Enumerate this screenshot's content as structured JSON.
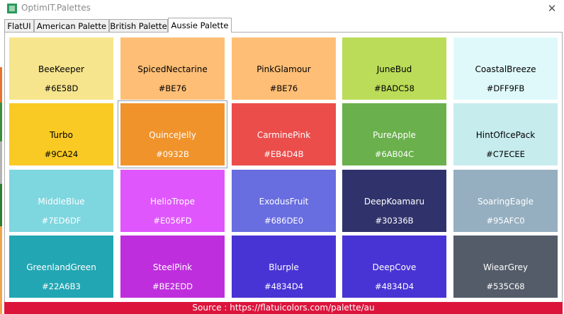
{
  "window": {
    "title": "OptimIT.Palettes",
    "close_symbol": "✕",
    "icon": "app-icon"
  },
  "tabs": [
    {
      "label": "FlatUI",
      "selected": false
    },
    {
      "label": "American Palette",
      "selected": false
    },
    {
      "label": "British Palette",
      "selected": false
    },
    {
      "label": "Aussie Palette",
      "selected": true
    }
  ],
  "swatches": [
    {
      "name": "BeeKeeper",
      "code": "#6E58D",
      "color": "#f6e58d",
      "text_color": "#000000"
    },
    {
      "name": "SpicedNectarine",
      "code": "#BE76",
      "color": "#ffbe76",
      "text_color": "#000000"
    },
    {
      "name": "PinkGlamour",
      "code": "#BE76",
      "color": "#ffbe76",
      "text_color": "#000000"
    },
    {
      "name": "JuneBud",
      "code": "#BADC58",
      "color": "#badc58",
      "text_color": "#000000"
    },
    {
      "name": "CoastalBreeze",
      "code": "#DFF9FB",
      "color": "#dff9fb",
      "text_color": "#000000"
    },
    {
      "name": "Turbo",
      "code": "#9CA24",
      "color": "#f9ca24",
      "text_color": "#000000"
    },
    {
      "name": "QuinceJelly",
      "code": "#0932B",
      "color": "#f0932b",
      "text_color": "#ffffff",
      "focused": true
    },
    {
      "name": "CarminePink",
      "code": "#EB4D4B",
      "color": "#eb4d4b",
      "text_color": "#ffffff"
    },
    {
      "name": "PureApple",
      "code": "#6AB04C",
      "color": "#6ab04c",
      "text_color": "#ffffff"
    },
    {
      "name": "HintOfIcePack",
      "code": "#C7ECEE",
      "color": "#c7ecee",
      "text_color": "#000000"
    },
    {
      "name": "MiddleBlue",
      "code": "#7ED6DF",
      "color": "#7ed6df",
      "text_color": "#ffffff"
    },
    {
      "name": "HelioTrope",
      "code": "#E056FD",
      "color": "#e056fd",
      "text_color": "#ffffff"
    },
    {
      "name": "ExodusFruit",
      "code": "#686DE0",
      "color": "#686de0",
      "text_color": "#ffffff"
    },
    {
      "name": "DeepKoamaru",
      "code": "#30336B",
      "color": "#30336b",
      "text_color": "#ffffff"
    },
    {
      "name": "SoaringEagle",
      "code": "#95AFC0",
      "color": "#95afc0",
      "text_color": "#ffffff"
    },
    {
      "name": "GreenlandGreen",
      "code": "#22A6B3",
      "color": "#22a6b3",
      "text_color": "#ffffff"
    },
    {
      "name": "SteelPink",
      "code": "#BE2EDD",
      "color": "#be2edd",
      "text_color": "#ffffff"
    },
    {
      "name": "Blurple",
      "code": "#4834D4",
      "color": "#4834d4",
      "text_color": "#ffffff"
    },
    {
      "name": "DeepCove",
      "code": "#4834D4",
      "color": "#4834d4",
      "text_color": "#ffffff"
    },
    {
      "name": "WiearGrey",
      "code": "#535C68",
      "color": "#535c68",
      "text_color": "#ffffff"
    }
  ],
  "footer": {
    "text": "Source : https://flatuicolors.com/palette/au",
    "color": "#dc143c"
  }
}
